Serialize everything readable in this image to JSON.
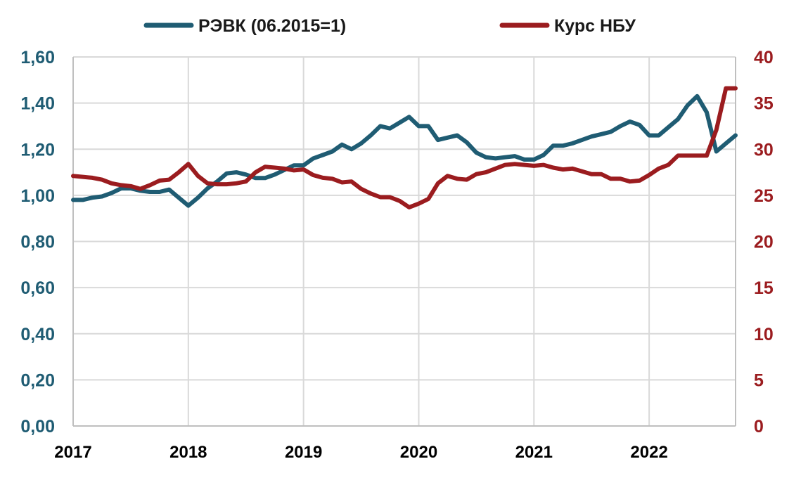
{
  "chart_data": {
    "type": "line",
    "x_ticks": [
      "2017",
      "2018",
      "2019",
      "2020",
      "2021",
      "2022"
    ],
    "y_left": {
      "ylim": [
        0,
        1.6
      ],
      "ticks": [
        0,
        0.2,
        0.4,
        0.6,
        0.8,
        1.0,
        1.2,
        1.4,
        1.6
      ],
      "tick_labels": [
        "0,00",
        "0,20",
        "0,40",
        "0,60",
        "0,80",
        "1,00",
        "1,20",
        "1,40",
        "1,60"
      ]
    },
    "y_right": {
      "ylim": [
        0,
        40
      ],
      "ticks": [
        0,
        5,
        10,
        15,
        20,
        25,
        30,
        35,
        40
      ],
      "tick_labels": [
        "0",
        "5",
        "10",
        "15",
        "20",
        "25",
        "30",
        "35",
        "40"
      ]
    },
    "grid": true,
    "legend_position": "top",
    "colors": {
      "reer": "#1f5c73",
      "nbu": "#9b1c1f"
    },
    "series": [
      {
        "name": "РЭВК (06.2015=1)",
        "axis": "left",
        "x": [
          "2017-01",
          "2017-02",
          "2017-03",
          "2017-04",
          "2017-05",
          "2017-06",
          "2017-07",
          "2017-08",
          "2017-09",
          "2017-10",
          "2017-11",
          "2017-12",
          "2018-01",
          "2018-02",
          "2018-03",
          "2018-04",
          "2018-05",
          "2018-06",
          "2018-07",
          "2018-08",
          "2018-09",
          "2018-10",
          "2018-11",
          "2018-12",
          "2019-01",
          "2019-02",
          "2019-03",
          "2019-04",
          "2019-05",
          "2019-06",
          "2019-07",
          "2019-08",
          "2019-09",
          "2019-10",
          "2019-11",
          "2019-12",
          "2020-01",
          "2020-02",
          "2020-03",
          "2020-04",
          "2020-05",
          "2020-06",
          "2020-07",
          "2020-08",
          "2020-09",
          "2020-10",
          "2020-11",
          "2020-12",
          "2021-01",
          "2021-02",
          "2021-03",
          "2021-04",
          "2021-05",
          "2021-06",
          "2021-07",
          "2021-08",
          "2021-09",
          "2021-10",
          "2021-11",
          "2021-12",
          "2022-01",
          "2022-02",
          "2022-03",
          "2022-04",
          "2022-05",
          "2022-06",
          "2022-07",
          "2022-08",
          "2022-09",
          "2022-10"
        ],
        "values": [
          0.98,
          0.98,
          0.99,
          0.995,
          1.01,
          1.03,
          1.03,
          1.02,
          1.015,
          1.015,
          1.025,
          0.99,
          0.955,
          0.99,
          1.03,
          1.06,
          1.095,
          1.1,
          1.09,
          1.075,
          1.075,
          1.09,
          1.11,
          1.13,
          1.13,
          1.16,
          1.175,
          1.19,
          1.22,
          1.2,
          1.225,
          1.26,
          1.3,
          1.29,
          1.315,
          1.34,
          1.3,
          1.3,
          1.24,
          1.25,
          1.26,
          1.23,
          1.185,
          1.165,
          1.16,
          1.165,
          1.17,
          1.155,
          1.155,
          1.175,
          1.215,
          1.215,
          1.225,
          1.24,
          1.255,
          1.265,
          1.275,
          1.3,
          1.32,
          1.305,
          1.26,
          1.26,
          1.295,
          1.33,
          1.39,
          1.43,
          1.36,
          1.19,
          1.225,
          1.26
        ]
      },
      {
        "name": "Курс НБУ",
        "axis": "right",
        "x": [
          "2017-01",
          "2017-02",
          "2017-03",
          "2017-04",
          "2017-05",
          "2017-06",
          "2017-07",
          "2017-08",
          "2017-09",
          "2017-10",
          "2017-11",
          "2017-12",
          "2018-01",
          "2018-02",
          "2018-03",
          "2018-04",
          "2018-05",
          "2018-06",
          "2018-07",
          "2018-08",
          "2018-09",
          "2018-10",
          "2018-11",
          "2018-12",
          "2019-01",
          "2019-02",
          "2019-03",
          "2019-04",
          "2019-05",
          "2019-06",
          "2019-07",
          "2019-08",
          "2019-09",
          "2019-10",
          "2019-11",
          "2019-12",
          "2020-01",
          "2020-02",
          "2020-03",
          "2020-04",
          "2020-05",
          "2020-06",
          "2020-07",
          "2020-08",
          "2020-09",
          "2020-10",
          "2020-11",
          "2020-12",
          "2021-01",
          "2021-02",
          "2021-03",
          "2021-04",
          "2021-05",
          "2021-06",
          "2021-07",
          "2021-08",
          "2021-09",
          "2021-10",
          "2021-11",
          "2021-12",
          "2022-01",
          "2022-02",
          "2022-03",
          "2022-04",
          "2022-05",
          "2022-06",
          "2022-07",
          "2022-08",
          "2022-09",
          "2022-10"
        ],
        "values": [
          27.1,
          27.0,
          26.9,
          26.7,
          26.3,
          26.1,
          26.0,
          25.7,
          26.1,
          26.6,
          26.7,
          27.5,
          28.4,
          27.1,
          26.3,
          26.2,
          26.2,
          26.3,
          26.5,
          27.5,
          28.1,
          28.0,
          27.9,
          27.7,
          27.8,
          27.2,
          26.9,
          26.8,
          26.4,
          26.5,
          25.7,
          25.2,
          24.8,
          24.8,
          24.4,
          23.7,
          24.1,
          24.6,
          26.3,
          27.1,
          26.8,
          26.7,
          27.3,
          27.5,
          27.9,
          28.3,
          28.4,
          28.3,
          28.2,
          28.3,
          28.0,
          27.8,
          27.9,
          27.6,
          27.3,
          27.3,
          26.8,
          26.8,
          26.5,
          26.6,
          27.2,
          27.9,
          28.3,
          29.3,
          29.3,
          29.3,
          29.3,
          32.1,
          36.6,
          36.6
        ]
      }
    ]
  }
}
